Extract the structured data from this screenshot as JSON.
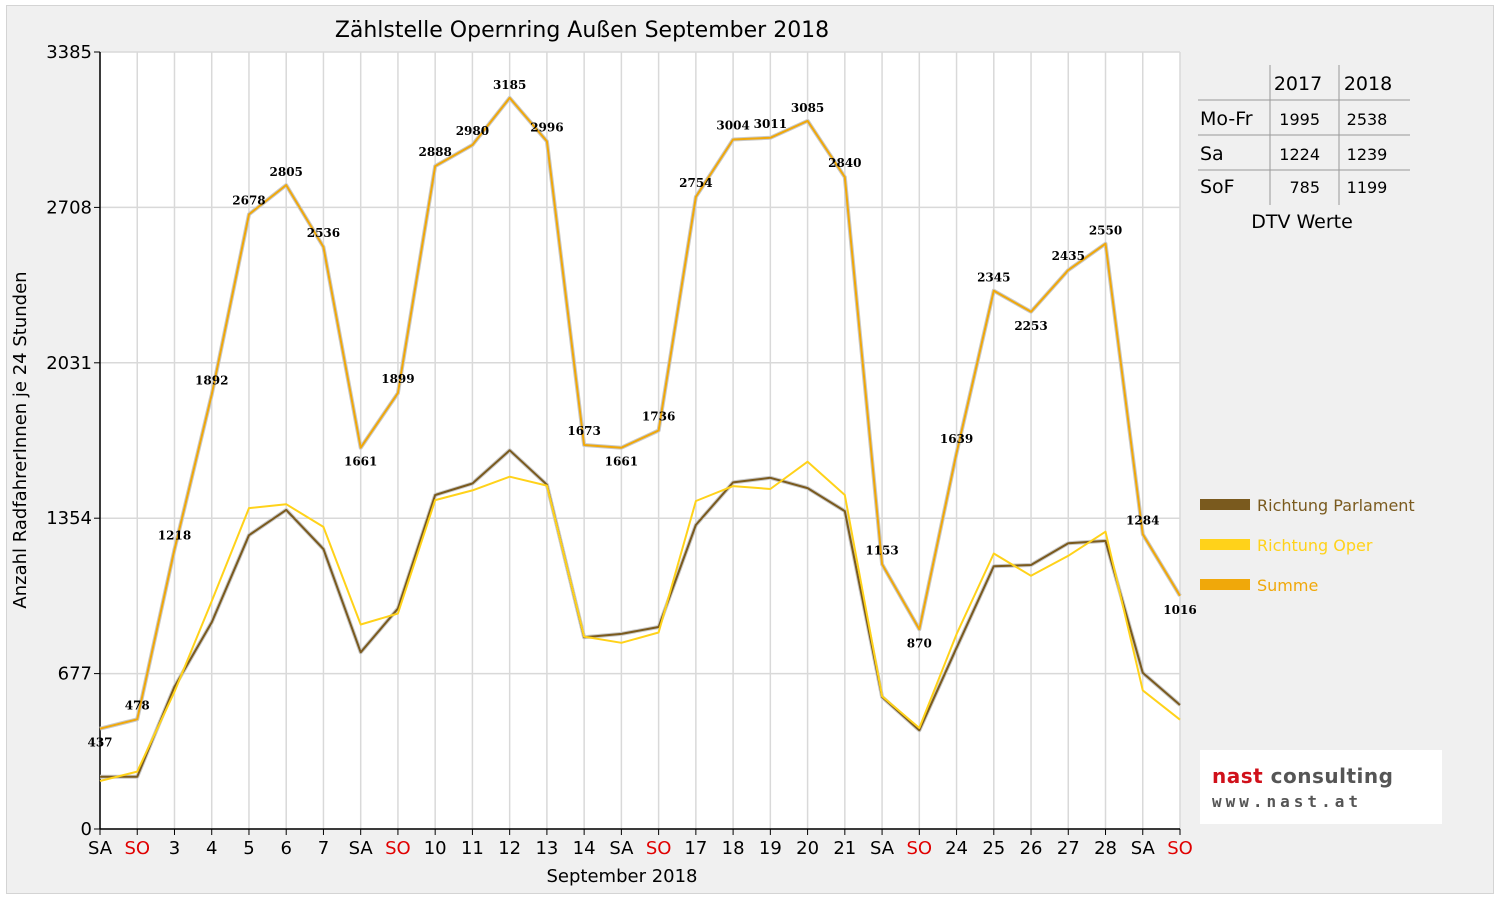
{
  "chart_data": {
    "type": "line",
    "title": "Zählstelle Opernring Außen September 2018",
    "xlabel": "September 2018",
    "ylabel": "Anzahl RadfahrerInnen je 24 Stunden",
    "ylim": [
      0,
      3385
    ],
    "yticks": [
      "0",
      "677",
      "1354",
      "2031",
      "2708",
      "3385"
    ],
    "grid": true,
    "legend_position": "right",
    "categories": [
      "SA",
      "SO",
      "3",
      "4",
      "5",
      "6",
      "7",
      "SA",
      "SO",
      "10",
      "11",
      "12",
      "13",
      "14",
      "SA",
      "SO",
      "17",
      "18",
      "19",
      "20",
      "21",
      "SA",
      "SO",
      "24",
      "25",
      "26",
      "27",
      "28",
      "SA",
      "SO"
    ],
    "weekend_color": "#e00000",
    "weekend_indices": [
      1,
      8,
      15,
      22,
      29
    ],
    "series": [
      {
        "name": "Richtung Parlament",
        "color": "#7a5a1e",
        "values": [
          228,
          228,
          620,
          900,
          1280,
          1390,
          1220,
          770,
          960,
          1455,
          1505,
          1650,
          1500,
          835,
          850,
          880,
          1325,
          1510,
          1530,
          1485,
          1385,
          575,
          430,
          790,
          1145,
          1150,
          1245,
          1255,
          680,
          540
        ]
      },
      {
        "name": "Richtung Oper",
        "color": "#ffd21a",
        "values": [
          209,
          250,
          598,
          992,
          1398,
          1415,
          1316,
          891,
          939,
          1433,
          1475,
          1535,
          1496,
          838,
          811,
          856,
          1429,
          1494,
          1481,
          1600,
          1455,
          578,
          440,
          849,
          1200,
          1103,
          1190,
          1295,
          604,
          476
        ]
      },
      {
        "name": "Summe",
        "color": "#f0a80a",
        "values": [
          437,
          478,
          1218,
          1892,
          2678,
          2805,
          2536,
          1661,
          1899,
          2888,
          2980,
          3185,
          2996,
          1673,
          1661,
          1736,
          2754,
          3004,
          3011,
          3085,
          2840,
          1153,
          870,
          1639,
          2345,
          2253,
          2435,
          2550,
          1284,
          1016
        ],
        "labels": [
          "437",
          "478",
          "1218",
          "1892",
          "2678",
          "2805",
          "2536",
          "1661",
          "1899",
          "2888",
          "2980",
          "3185",
          "2996",
          "1673",
          "1661",
          "1736",
          "2754",
          "3004",
          "3011",
          "3085",
          "2840",
          "1153",
          "870",
          "1639",
          "2345",
          "2253",
          "2435",
          "2550",
          "1284",
          "1016"
        ]
      }
    ]
  },
  "dtv_table": {
    "headers": [
      "",
      "2017",
      "2018"
    ],
    "rows": [
      [
        "Mo-Fr",
        "1995",
        "2538"
      ],
      [
        "Sa",
        "1224",
        "1239"
      ],
      [
        "SoF",
        "785",
        "1199"
      ]
    ],
    "caption": "DTV Werte"
  },
  "logo": {
    "brand_part1": "nast",
    "brand_part2": " consulting",
    "website": "www.nast.at"
  }
}
